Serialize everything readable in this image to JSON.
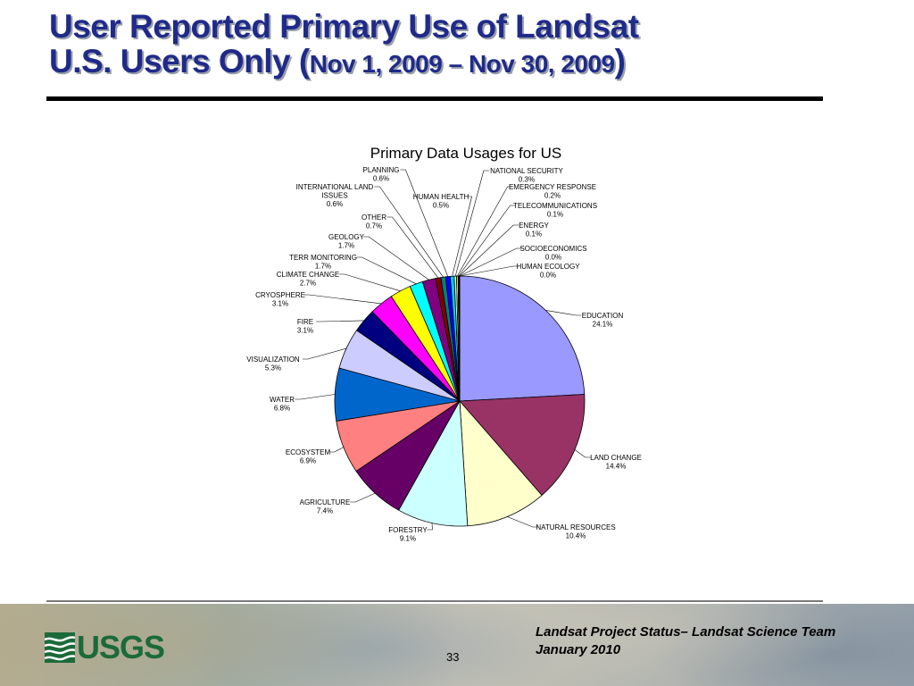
{
  "slide": {
    "title_line1": "User Reported Primary Use of Landsat",
    "title_line2_main": "U.S. Users Only (",
    "title_line2_dates": "Nov 1, 2009 – Nov 30, 2009",
    "title_line2_close": ")",
    "page_number": "33",
    "footer_line1": "Landsat Project Status– Landsat Science Team",
    "footer_line2": "January 2010",
    "logo_text": "USGS"
  },
  "colors": {
    "title": "#1f2a8a",
    "usgs_green": "#1b6a3a"
  },
  "chart_data": {
    "type": "pie",
    "title": "Primary Data Usages for US",
    "start_angle_deg": 0,
    "direction": "clockwise",
    "slices": [
      {
        "name": "EDUCATION",
        "pct_label": "24.1%",
        "value": 24.1,
        "color": "#9999ff"
      },
      {
        "name": "LAND CHANGE",
        "pct_label": "14.4%",
        "value": 14.4,
        "color": "#993366"
      },
      {
        "name": "NATURAL RESOURCES",
        "pct_label": "10.4%",
        "value": 10.4,
        "color": "#ffffcc"
      },
      {
        "name": "FORESTRY",
        "pct_label": "9.1%",
        "value": 9.1,
        "color": "#ccffff"
      },
      {
        "name": "AGRICULTURE",
        "pct_label": "7.4%",
        "value": 7.4,
        "color": "#660066"
      },
      {
        "name": "ECOSYSTEM",
        "pct_label": "6.9%",
        "value": 6.9,
        "color": "#ff8080"
      },
      {
        "name": "WATER",
        "pct_label": "6.8%",
        "value": 6.8,
        "color": "#0066cc"
      },
      {
        "name": "VISUALIZATION",
        "pct_label": "5.3%",
        "value": 5.3,
        "color": "#ccccff"
      },
      {
        "name": "FIRE",
        "pct_label": "3.1%",
        "value": 3.1,
        "color": "#000080"
      },
      {
        "name": "CRYOSPHERE",
        "pct_label": "3.1%",
        "value": 3.1,
        "color": "#ff00ff"
      },
      {
        "name": "CLIMATE CHANGE",
        "pct_label": "2.7%",
        "value": 2.7,
        "color": "#ffff00"
      },
      {
        "name": "TERR MONITORING",
        "pct_label": "1.7%",
        "value": 1.7,
        "color": "#00ffff"
      },
      {
        "name": "GEOLOGY",
        "pct_label": "1.7%",
        "value": 1.7,
        "color": "#800080"
      },
      {
        "name": "OTHER",
        "pct_label": "0.7%",
        "value": 0.7,
        "color": "#800000"
      },
      {
        "name": "INTERNATIONAL LAND ISSUES",
        "pct_label": "0.6%",
        "value": 0.6,
        "color": "#008080"
      },
      {
        "name": "PLANNING",
        "pct_label": "0.6%",
        "value": 0.6,
        "color": "#0000ff"
      },
      {
        "name": "HUMAN HEALTH",
        "pct_label": "0.5%",
        "value": 0.5,
        "color": "#00ccff"
      },
      {
        "name": "NATIONAL SECURITY",
        "pct_label": "0.3%",
        "value": 0.3,
        "color": "#ccffcc"
      },
      {
        "name": "EMERGENCY RESPONSE",
        "pct_label": "0.2%",
        "value": 0.2,
        "color": "#ffff99"
      },
      {
        "name": "TELECOMMUNICATIONS",
        "pct_label": "0.1%",
        "value": 0.1,
        "color": "#99ccff"
      },
      {
        "name": "ENERGY",
        "pct_label": "0.1%",
        "value": 0.1,
        "color": "#ff99cc"
      },
      {
        "name": "SOCIOECONOMICS",
        "pct_label": "0.0%",
        "value": 0.0,
        "color": "#cc99ff"
      },
      {
        "name": "HUMAN ECOLOGY",
        "pct_label": "0.0%",
        "value": 0.0,
        "color": "#ffcc99"
      }
    ]
  }
}
